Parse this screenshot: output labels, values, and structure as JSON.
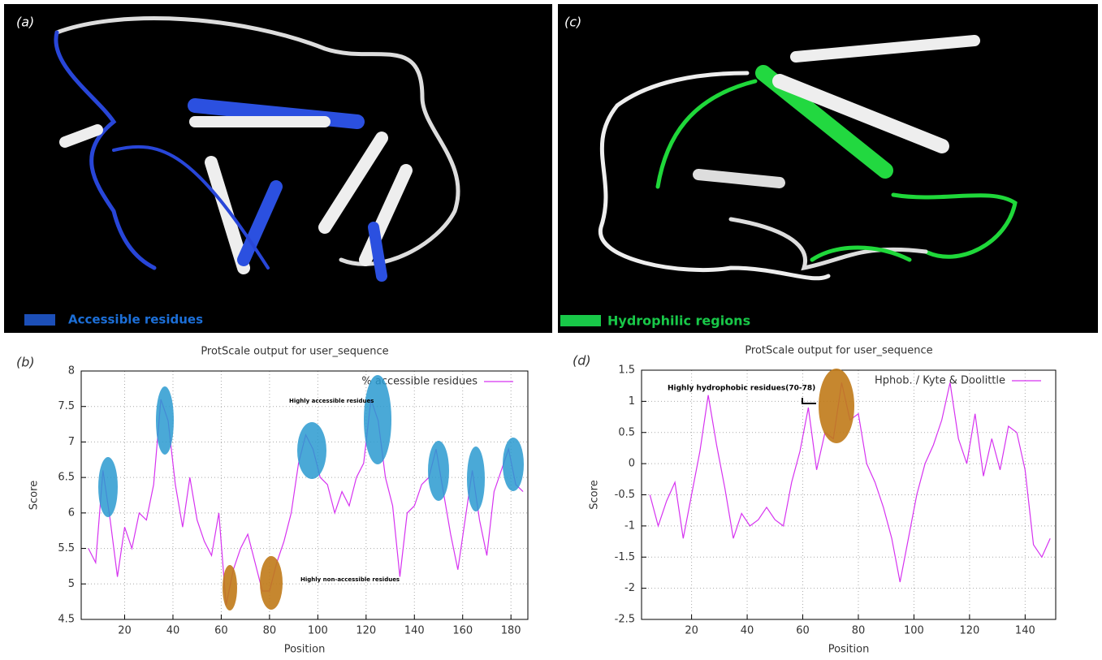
{
  "panels": [
    {
      "label": "(a)",
      "legend": "Accessible residues",
      "color": "#1c4fb8"
    },
    {
      "label": "(c)",
      "legend": "Hydrophilic regions",
      "color": "#18c848"
    }
  ],
  "chart_data": [
    {
      "type": "line",
      "panel_label": "(b)",
      "title": "ProtScale output for user_sequence",
      "x_label": "Position",
      "y_label": "Score",
      "legend": "upper right",
      "grid": true,
      "annotations": [
        "Highly  accessible residues",
        "Highly  non-accessible residues"
      ],
      "xlim": [
        2,
        187
      ],
      "ylim": [
        4.5,
        8
      ],
      "xticks": [
        20,
        40,
        60,
        80,
        100,
        120,
        140,
        160,
        180
      ],
      "yticks": [
        4.5,
        5,
        5.5,
        6,
        6.5,
        7,
        7.5,
        8
      ],
      "x": [
        5,
        8,
        11,
        14,
        17,
        20,
        23,
        26,
        29,
        32,
        35,
        38,
        41,
        44,
        47,
        50,
        53,
        56,
        59,
        62,
        65,
        68,
        71,
        74,
        77,
        80,
        83,
        86,
        89,
        92,
        95,
        98,
        101,
        104,
        107,
        110,
        113,
        116,
        119,
        122,
        125,
        128,
        131,
        134,
        137,
        140,
        143,
        146,
        149,
        152,
        155,
        158,
        161,
        164,
        167,
        170,
        173,
        176,
        179,
        182,
        185
      ],
      "series": [
        {
          "name": "% accessible residues",
          "color": "#d633f0",
          "values": [
            5.5,
            5.3,
            6.6,
            5.9,
            5.1,
            5.8,
            5.5,
            6.0,
            5.9,
            6.4,
            7.6,
            7.3,
            6.4,
            5.8,
            6.5,
            5.9,
            5.6,
            5.4,
            6.0,
            4.7,
            5.2,
            5.5,
            5.7,
            5.3,
            4.9,
            4.9,
            5.3,
            5.6,
            6.0,
            6.7,
            7.1,
            6.9,
            6.5,
            6.4,
            6.0,
            6.3,
            6.1,
            6.5,
            6.7,
            7.6,
            7.3,
            6.5,
            6.1,
            5.1,
            6.0,
            6.1,
            6.4,
            6.5,
            6.9,
            6.3,
            5.7,
            5.2,
            5.9,
            6.6,
            5.9,
            5.4,
            6.3,
            6.6,
            6.9,
            6.4,
            6.3
          ]
        }
      ]
    },
    {
      "type": "line",
      "panel_label": "(d)",
      "title": "ProtScale output for user_sequence",
      "x_label": "Position",
      "y_label": "Score",
      "legend": "upper right",
      "grid": true,
      "annotations": [
        "Highly  hydrophobic residues(70-78)"
      ],
      "xlim": [
        2,
        151
      ],
      "ylim": [
        -2.5,
        1.5
      ],
      "xticks": [
        20,
        40,
        60,
        80,
        100,
        120,
        140
      ],
      "yticks": [
        -2.5,
        -2,
        -1.5,
        -1,
        -0.5,
        0,
        0.5,
        1,
        1.5
      ],
      "x": [
        5,
        8,
        11,
        14,
        17,
        20,
        23,
        26,
        29,
        32,
        35,
        38,
        41,
        44,
        47,
        50,
        53,
        56,
        59,
        62,
        65,
        68,
        71,
        74,
        77,
        80,
        83,
        86,
        89,
        92,
        95,
        98,
        101,
        104,
        107,
        110,
        113,
        116,
        119,
        122,
        125,
        128,
        131,
        134,
        137,
        140,
        143,
        146,
        149
      ],
      "series": [
        {
          "name": "Hphob. / Kyte & Doolittle",
          "color": "#d633f0",
          "values": [
            -0.5,
            -1.0,
            -0.6,
            -0.3,
            -1.2,
            -0.5,
            0.2,
            1.1,
            0.3,
            -0.4,
            -1.2,
            -0.8,
            -1.0,
            -0.9,
            -0.7,
            -0.9,
            -1.0,
            -0.3,
            0.2,
            0.9,
            -0.1,
            0.5,
            0.4,
            1.3,
            0.7,
            0.8,
            0.0,
            -0.3,
            -0.7,
            -1.2,
            -1.9,
            -1.2,
            -0.5,
            0.0,
            0.3,
            0.7,
            1.3,
            0.4,
            0.0,
            0.8,
            -0.2,
            0.4,
            -0.1,
            0.6,
            0.5,
            -0.1,
            -1.3,
            -1.5,
            -1.2
          ]
        }
      ]
    }
  ]
}
